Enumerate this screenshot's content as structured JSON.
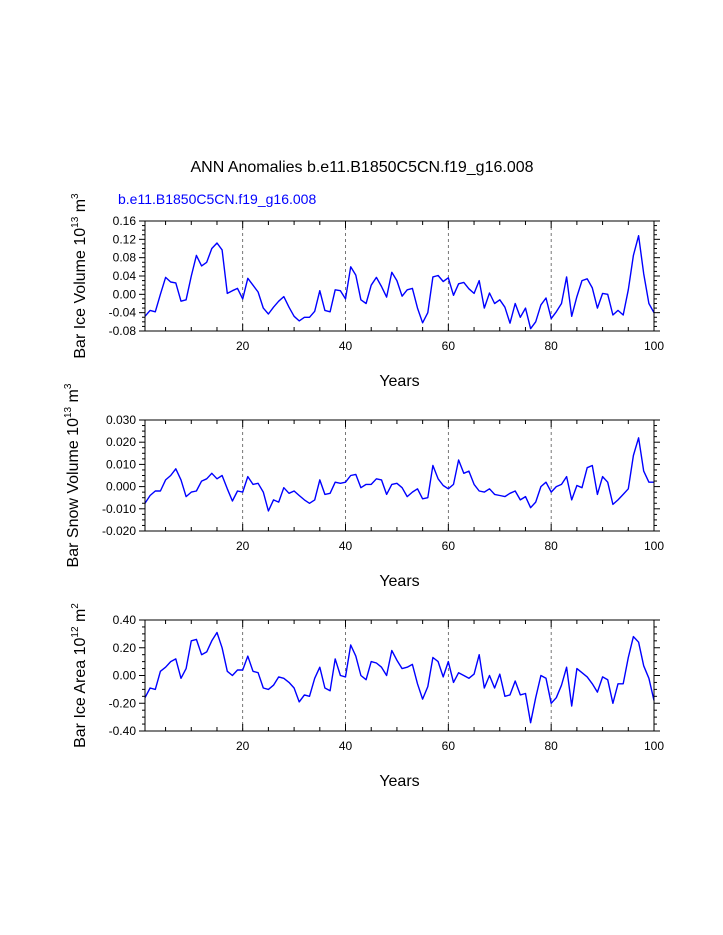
{
  "figure": {
    "title": "ANN Anomalies b.e11.B1850C5CN.f19_g16.008",
    "subtitle": "b.e11.B1850C5CN.f19_g16.008",
    "subtitle_color": "#0000ff",
    "line_color": "#0000ff"
  },
  "chart_data": [
    {
      "type": "line",
      "xlabel": "Years",
      "ylabel": {
        "base": "Bar Ice Volume 10",
        "exp": "13",
        "unit": " m",
        "unit_exp": "3"
      },
      "xlim": [
        1,
        100
      ],
      "ylim": [
        -0.08,
        0.16
      ],
      "xticks": [
        20,
        40,
        60,
        80,
        100
      ],
      "yticks": [
        -0.08,
        -0.04,
        0.0,
        0.04,
        0.08,
        0.12,
        0.16
      ],
      "ytick_labels": [
        "-0.08",
        "-0.04",
        "0.00",
        "0.04",
        "0.08",
        "0.12",
        "0.16"
      ],
      "vlines": [
        20,
        40,
        60,
        80
      ],
      "series": [
        {
          "name": "Bar Ice Volume",
          "x": [
            1,
            2,
            3,
            4,
            5,
            6,
            7,
            8,
            9,
            10,
            11,
            12,
            13,
            14,
            15,
            16,
            17,
            18,
            19,
            20,
            21,
            22,
            23,
            24,
            25,
            26,
            27,
            28,
            29,
            30,
            31,
            32,
            33,
            34,
            35,
            36,
            37,
            38,
            39,
            40,
            41,
            42,
            43,
            44,
            45,
            46,
            47,
            48,
            49,
            50,
            51,
            52,
            53,
            54,
            55,
            56,
            57,
            58,
            59,
            60,
            61,
            62,
            63,
            64,
            65,
            66,
            67,
            68,
            69,
            70,
            71,
            72,
            73,
            74,
            75,
            76,
            77,
            78,
            79,
            80,
            81,
            82,
            83,
            84,
            85,
            86,
            87,
            88,
            89,
            90,
            91,
            92,
            93,
            94,
            95,
            96,
            97,
            98,
            99,
            100
          ],
          "values": [
            -0.048,
            -0.035,
            -0.038,
            0.0,
            0.037,
            0.027,
            0.025,
            -0.015,
            -0.012,
            0.04,
            0.085,
            0.062,
            0.07,
            0.1,
            0.112,
            0.097,
            0.002,
            0.008,
            0.013,
            -0.01,
            0.035,
            0.02,
            0.005,
            -0.03,
            -0.043,
            -0.028,
            -0.015,
            -0.005,
            -0.028,
            -0.048,
            -0.058,
            -0.05,
            -0.05,
            -0.037,
            0.008,
            -0.035,
            -0.038,
            0.01,
            0.008,
            -0.01,
            0.06,
            0.042,
            -0.012,
            -0.02,
            0.02,
            0.037,
            0.017,
            -0.006,
            0.048,
            0.03,
            -0.004,
            0.01,
            0.013,
            -0.03,
            -0.062,
            -0.04,
            0.038,
            0.041,
            0.028,
            0.036,
            -0.002,
            0.023,
            0.026,
            0.012,
            0.002,
            0.03,
            -0.03,
            0.003,
            -0.02,
            -0.012,
            -0.028,
            -0.063,
            -0.02,
            -0.05,
            -0.03,
            -0.075,
            -0.06,
            -0.023,
            -0.008,
            -0.053,
            -0.038,
            -0.02,
            0.038,
            -0.048,
            -0.005,
            0.03,
            0.034,
            0.014,
            -0.03,
            0.002,
            0.0,
            -0.045,
            -0.035,
            -0.045,
            0.01,
            0.085,
            0.128,
            0.045,
            -0.02,
            -0.04
          ]
        }
      ]
    },
    {
      "type": "line",
      "xlabel": "Years",
      "ylabel": {
        "base": "Bar Snow Volume 10",
        "exp": "13",
        "unit": " m",
        "unit_exp": "3"
      },
      "xlim": [
        1,
        100
      ],
      "ylim": [
        -0.02,
        0.03
      ],
      "xticks": [
        20,
        40,
        60,
        80,
        100
      ],
      "yticks": [
        -0.02,
        -0.01,
        0.0,
        0.01,
        0.02,
        0.03
      ],
      "ytick_labels": [
        "-0.020",
        "-0.010",
        "0.000",
        "0.010",
        "0.020",
        "0.030"
      ],
      "vlines": [
        20,
        40,
        60,
        80
      ],
      "series": [
        {
          "name": "Bar Snow Volume",
          "x": [
            1,
            2,
            3,
            4,
            5,
            6,
            7,
            8,
            9,
            10,
            11,
            12,
            13,
            14,
            15,
            16,
            17,
            18,
            19,
            20,
            21,
            22,
            23,
            24,
            25,
            26,
            27,
            28,
            29,
            30,
            31,
            32,
            33,
            34,
            35,
            36,
            37,
            38,
            39,
            40,
            41,
            42,
            43,
            44,
            45,
            46,
            47,
            48,
            49,
            50,
            51,
            52,
            53,
            54,
            55,
            56,
            57,
            58,
            59,
            60,
            61,
            62,
            63,
            64,
            65,
            66,
            67,
            68,
            69,
            70,
            71,
            72,
            73,
            74,
            75,
            76,
            77,
            78,
            79,
            80,
            81,
            82,
            83,
            84,
            85,
            86,
            87,
            88,
            89,
            90,
            91,
            92,
            93,
            94,
            95,
            96,
            97,
            98,
            99,
            100
          ],
          "values": [
            -0.0075,
            -0.004,
            -0.002,
            -0.002,
            0.003,
            0.005,
            0.008,
            0.003,
            -0.0045,
            -0.0025,
            -0.002,
            0.0025,
            0.0035,
            0.006,
            0.0035,
            0.005,
            -0.001,
            -0.0065,
            -0.002,
            -0.0025,
            0.0045,
            0.001,
            0.0015,
            -0.0025,
            -0.011,
            -0.006,
            -0.007,
            -0.0005,
            -0.003,
            -0.002,
            -0.004,
            -0.006,
            -0.0075,
            -0.006,
            0.003,
            -0.0035,
            -0.003,
            0.002,
            0.0015,
            0.002,
            0.005,
            0.0055,
            -0.0005,
            0.001,
            0.001,
            0.0035,
            0.003,
            -0.0035,
            0.001,
            0.0015,
            -0.0005,
            -0.0045,
            -0.0025,
            -0.001,
            -0.0055,
            -0.005,
            0.0095,
            0.0035,
            0.0005,
            -0.001,
            0.001,
            0.012,
            0.006,
            0.007,
            0.001,
            -0.002,
            -0.0025,
            -0.001,
            -0.0035,
            -0.004,
            -0.0045,
            -0.003,
            -0.002,
            -0.006,
            -0.0045,
            -0.0095,
            -0.007,
            0.0,
            0.002,
            -0.0025,
            0.0,
            0.001,
            0.0045,
            -0.006,
            0.0005,
            -0.0005,
            0.0085,
            0.0095,
            -0.0035,
            0.0045,
            0.002,
            -0.008,
            -0.006,
            -0.0035,
            -0.001,
            0.014,
            0.022,
            0.007,
            0.002,
            0.002
          ]
        }
      ]
    },
    {
      "type": "line",
      "xlabel": "Years",
      "ylabel": {
        "base": "Bar Ice Area 10",
        "exp": "12",
        "unit": " m",
        "unit_exp": "2"
      },
      "xlim": [
        1,
        100
      ],
      "ylim": [
        -0.4,
        0.4
      ],
      "xticks": [
        20,
        40,
        60,
        80,
        100
      ],
      "yticks": [
        -0.4,
        -0.2,
        0.0,
        0.2,
        0.4
      ],
      "ytick_labels": [
        "-0.40",
        "-0.20",
        "0.00",
        "0.20",
        "0.40"
      ],
      "vlines": [
        20,
        40,
        60,
        80
      ],
      "series": [
        {
          "name": "Bar Ice Area",
          "x": [
            1,
            2,
            3,
            4,
            5,
            6,
            7,
            8,
            9,
            10,
            11,
            12,
            13,
            14,
            15,
            16,
            17,
            18,
            19,
            20,
            21,
            22,
            23,
            24,
            25,
            26,
            27,
            28,
            29,
            30,
            31,
            32,
            33,
            34,
            35,
            36,
            37,
            38,
            39,
            40,
            41,
            42,
            43,
            44,
            45,
            46,
            47,
            48,
            49,
            50,
            51,
            52,
            53,
            54,
            55,
            56,
            57,
            58,
            59,
            60,
            61,
            62,
            63,
            64,
            65,
            66,
            67,
            68,
            69,
            70,
            71,
            72,
            73,
            74,
            75,
            76,
            77,
            78,
            79,
            80,
            81,
            82,
            83,
            84,
            85,
            86,
            87,
            88,
            89,
            90,
            91,
            92,
            93,
            94,
            95,
            96,
            97,
            98,
            99,
            100
          ],
          "values": [
            -0.16,
            -0.09,
            -0.1,
            0.03,
            0.06,
            0.1,
            0.12,
            -0.02,
            0.05,
            0.25,
            0.26,
            0.15,
            0.17,
            0.25,
            0.31,
            0.2,
            0.03,
            0.0,
            0.04,
            0.04,
            0.14,
            0.03,
            0.02,
            -0.09,
            -0.1,
            -0.07,
            -0.01,
            -0.02,
            -0.05,
            -0.09,
            -0.19,
            -0.14,
            -0.15,
            -0.02,
            0.06,
            -0.09,
            -0.11,
            0.12,
            0.0,
            -0.01,
            0.22,
            0.14,
            0.0,
            -0.03,
            0.1,
            0.09,
            0.06,
            0.0,
            0.18,
            0.11,
            0.05,
            0.06,
            0.08,
            -0.06,
            -0.17,
            -0.08,
            0.13,
            0.1,
            -0.01,
            0.1,
            -0.05,
            0.02,
            0.0,
            -0.02,
            0.01,
            0.15,
            -0.09,
            0.0,
            -0.09,
            0.01,
            -0.15,
            -0.14,
            -0.04,
            -0.14,
            -0.13,
            -0.34,
            -0.16,
            0.0,
            -0.02,
            -0.2,
            -0.16,
            -0.07,
            0.06,
            -0.22,
            0.05,
            0.02,
            -0.01,
            -0.06,
            -0.12,
            -0.01,
            -0.03,
            -0.2,
            -0.06,
            -0.06,
            0.13,
            0.28,
            0.24,
            0.07,
            -0.02,
            -0.18
          ]
        }
      ]
    }
  ]
}
